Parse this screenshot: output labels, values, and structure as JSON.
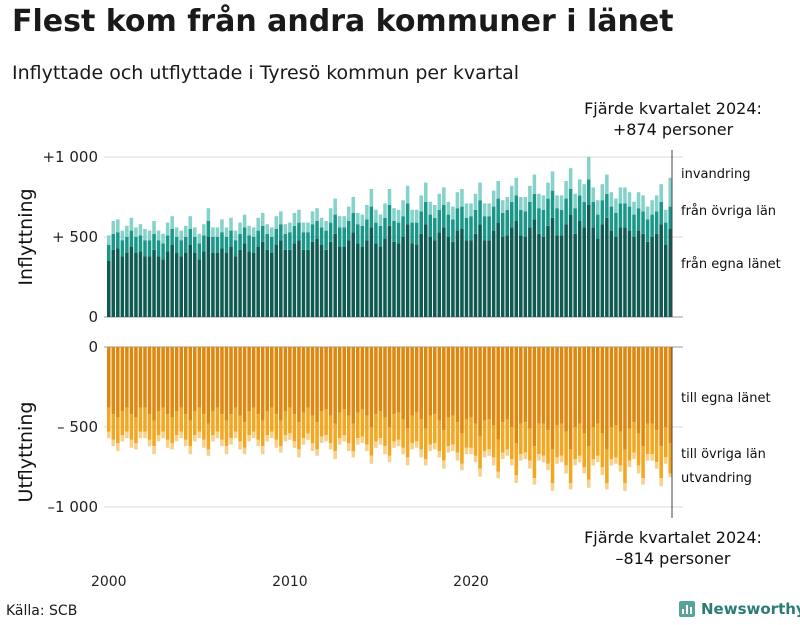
{
  "title": "Flest kom från andra kommuner i länet",
  "subtitle": "Inflyttade och utflyttade i Tyresö kommun per kvartal",
  "source": "Källa: SCB",
  "logo_text": "Newsworthy",
  "colors": {
    "in_own": "#0f5a52",
    "in_other": "#1b978a",
    "in_immig": "#84d2c9",
    "out_own": "#e0870d",
    "out_other": "#f3a61f",
    "out_emig": "#f7d08b",
    "grid": "#d9d9d9"
  },
  "chart_data": {
    "type": "bar",
    "stacked": true,
    "x_start": "2000 Q1",
    "x_ticks": [
      "2000",
      "2010",
      "2020"
    ],
    "panels": [
      {
        "name": "inflyttning",
        "ylabel": "Inflyttning",
        "ylim": [
          0,
          1000
        ],
        "yticks": [
          {
            "value": 1000,
            "label": "+1 000"
          },
          {
            "value": 500,
            "label": "+ 500"
          },
          {
            "value": 0,
            "label": "0"
          }
        ],
        "annotation": [
          "Fjärde kvartalet 2024:",
          "+874 personer"
        ],
        "series": [
          {
            "name": "från egna länet",
            "values": [
              350,
              420,
              430,
              380,
              400,
              440,
              400,
              410,
              380,
              380,
              420,
              380,
              360,
              410,
              450,
              400,
              380,
              400,
              450,
              400,
              360,
              410,
              500,
              400,
              400,
              430,
              400,
              440,
              380,
              420,
              460,
              410,
              400,
              440,
              470,
              420,
              400,
              450,
              480,
              420,
              420,
              460,
              480,
              420,
              420,
              470,
              490,
              450,
              420,
              470,
              520,
              440,
              440,
              480,
              530,
              460,
              440,
              480,
              560,
              460,
              440,
              490,
              570,
              470,
              460,
              500,
              580,
              460,
              450,
              520,
              580,
              500,
              480,
              530,
              560,
              500,
              470,
              540,
              550,
              480,
              480,
              520,
              580,
              480,
              480,
              540,
              590,
              500,
              510,
              560,
              600,
              510,
              500,
              560,
              610,
              520,
              500,
              570,
              620,
              510,
              510,
              580,
              640,
              520,
              600,
              560,
              700,
              560,
              490,
              580,
              620,
              540,
              500,
              560,
              560,
              540,
              500,
              540,
              520,
              470,
              500,
              520,
              580,
              450,
              550
            ]
          },
          {
            "name": "från övriga län",
            "values": [
              100,
              100,
              100,
              100,
              100,
              100,
              100,
              100,
              100,
              100,
              100,
              100,
              100,
              100,
              100,
              100,
              100,
              100,
              100,
              100,
              100,
              100,
              100,
              100,
              100,
              100,
              100,
              100,
              100,
              100,
              100,
              100,
              100,
              100,
              100,
              100,
              100,
              100,
              100,
              100,
              110,
              110,
              110,
              110,
              110,
              110,
              110,
              110,
              120,
              120,
              120,
              120,
              120,
              120,
              120,
              120,
              130,
              130,
              130,
              130,
              130,
              130,
              130,
              130,
              130,
              130,
              130,
              130,
              140,
              140,
              140,
              140,
              140,
              140,
              140,
              140,
              140,
              140,
              140,
              140,
              150,
              150,
              150,
              150,
              150,
              150,
              150,
              150,
              160,
              160,
              160,
              160,
              160,
              160,
              160,
              160,
              170,
              170,
              170,
              170,
              160,
              160,
              160,
              160,
              160,
              160,
              160,
              160,
              150,
              150,
              150,
              150,
              150,
              150,
              150,
              150,
              140,
              140,
              140,
              140,
              140,
              140,
              140,
              140,
              140
            ]
          },
          {
            "name": "invandring",
            "values": [
              60,
              80,
              80,
              60,
              70,
              80,
              60,
              70,
              70,
              60,
              80,
              60,
              60,
              80,
              80,
              60,
              60,
              70,
              80,
              60,
              60,
              70,
              80,
              60,
              60,
              80,
              60,
              80,
              60,
              70,
              80,
              60,
              60,
              80,
              80,
              60,
              60,
              80,
              80,
              60,
              60,
              80,
              80,
              60,
              60,
              80,
              80,
              60,
              60,
              90,
              100,
              70,
              70,
              90,
              100,
              70,
              70,
              90,
              110,
              80,
              70,
              90,
              100,
              80,
              80,
              100,
              110,
              80,
              80,
              100,
              120,
              80,
              80,
              100,
              110,
              80,
              80,
              100,
              110,
              90,
              80,
              100,
              110,
              80,
              80,
              100,
              110,
              80,
              80,
              100,
              110,
              80,
              90,
              100,
              120,
              90,
              90,
              100,
              120,
              80,
              90,
              110,
              130,
              90,
              100,
              110,
              140,
              90,
              90,
              100,
              120,
              90,
              90,
              100,
              100,
              90,
              80,
              100,
              100,
              80,
              90,
              100,
              110,
              80,
              180
            ]
          }
        ]
      },
      {
        "name": "utflyttning",
        "ylabel": "Utflyttning",
        "ylim": [
          -1000,
          0
        ],
        "yticks": [
          {
            "value": 0,
            "label": "0"
          },
          {
            "value": -500,
            "label": "– 500"
          },
          {
            "value": -1000,
            "label": "–1 000"
          }
        ],
        "annotation": [
          "Fjärde kvartalet 2024:",
          "–814 personer"
        ],
        "series": [
          {
            "name": "till egna länet",
            "values": [
              -380,
              -420,
              -440,
              -400,
              -380,
              -420,
              -440,
              -380,
              -380,
              -420,
              -460,
              -400,
              -380,
              -420,
              -440,
              -400,
              -380,
              -420,
              -460,
              -400,
              -380,
              -420,
              -480,
              -400,
              -380,
              -420,
              -460,
              -420,
              -380,
              -430,
              -470,
              -400,
              -380,
              -420,
              -460,
              -400,
              -380,
              -420,
              -460,
              -400,
              -380,
              -420,
              -470,
              -410,
              -380,
              -430,
              -470,
              -400,
              -390,
              -430,
              -480,
              -410,
              -390,
              -430,
              -480,
              -410,
              -390,
              -430,
              -500,
              -420,
              -400,
              -440,
              -500,
              -420,
              -410,
              -450,
              -510,
              -430,
              -410,
              -450,
              -510,
              -430,
              -420,
              -460,
              -520,
              -440,
              -430,
              -470,
              -540,
              -450,
              -440,
              -480,
              -560,
              -460,
              -450,
              -490,
              -580,
              -470,
              -450,
              -500,
              -600,
              -480,
              -470,
              -510,
              -620,
              -480,
              -480,
              -520,
              -640,
              -490,
              -480,
              -530,
              -640,
              -500,
              -480,
              -540,
              -620,
              -500,
              -480,
              -540,
              -640,
              -500,
              -490,
              -530,
              -640,
              -510,
              -470,
              -540,
              -620,
              -480,
              -480,
              -520,
              -620,
              -500,
              -600
            ]
          },
          {
            "name": "till övriga län",
            "values": [
              -150,
              -160,
              -160,
              -150,
              -150,
              -160,
              -160,
              -150,
              -150,
              -160,
              -160,
              -150,
              -150,
              -160,
              -160,
              -150,
              -150,
              -160,
              -160,
              -150,
              -150,
              -160,
              -160,
              -150,
              -150,
              -160,
              -160,
              -150,
              -150,
              -160,
              -160,
              -150,
              -150,
              -160,
              -160,
              -150,
              -150,
              -160,
              -160,
              -150,
              -160,
              -170,
              -170,
              -160,
              -160,
              -170,
              -170,
              -160,
              -160,
              -170,
              -170,
              -160,
              -160,
              -170,
              -170,
              -160,
              -170,
              -180,
              -180,
              -170,
              -170,
              -180,
              -180,
              -170,
              -170,
              -180,
              -180,
              -170,
              -180,
              -190,
              -190,
              -180,
              -180,
              -190,
              -190,
              -180,
              -180,
              -190,
              -190,
              -180,
              -190,
              -200,
              -200,
              -190,
              -190,
              -200,
              -200,
              -190,
              -190,
              -200,
              -200,
              -190,
              -190,
              -200,
              -200,
              -190,
              -200,
              -210,
              -210,
              -200,
              -200,
              -210,
              -210,
              -200,
              -200,
              -210,
              -210,
              -200,
              -200,
              -210,
              -210,
              -200,
              -200,
              -210,
              -210,
              -200,
              -190,
              -200,
              -200,
              -190,
              -190,
              -200,
              -200,
              -190,
              -190
            ]
          },
          {
            "name": "utvandring",
            "values": [
              -40,
              -40,
              -50,
              -40,
              -40,
              -50,
              -40,
              -40,
              -40,
              -40,
              -50,
              -40,
              -40,
              -50,
              -40,
              -40,
              -40,
              -40,
              -50,
              -40,
              -40,
              -50,
              -40,
              -40,
              -40,
              -40,
              -50,
              -40,
              -40,
              -50,
              -40,
              -40,
              -40,
              -40,
              -50,
              -40,
              -40,
              -50,
              -40,
              -40,
              -40,
              -40,
              -50,
              -40,
              -40,
              -50,
              -40,
              -40,
              -40,
              -40,
              -50,
              -40,
              -40,
              -50,
              -40,
              -40,
              -40,
              -40,
              -50,
              -40,
              -40,
              -50,
              -40,
              -40,
              -40,
              -40,
              -50,
              -40,
              -40,
              -50,
              -40,
              -40,
              -40,
              -40,
              -50,
              -40,
              -40,
              -50,
              -40,
              -40,
              -40,
              -40,
              -50,
              -40,
              -40,
              -50,
              -40,
              -40,
              -40,
              -40,
              -50,
              -40,
              -40,
              -50,
              -40,
              -40,
              -40,
              -40,
              -50,
              -40,
              -40,
              -50,
              -40,
              -40,
              -40,
              -40,
              -50,
              -40,
              -40,
              -50,
              -40,
              -40,
              -40,
              -40,
              -50,
              -40,
              -40,
              -50,
              -40,
              -40,
              -40,
              -40,
              -50,
              -40,
              -24
            ]
          }
        ]
      }
    ]
  }
}
